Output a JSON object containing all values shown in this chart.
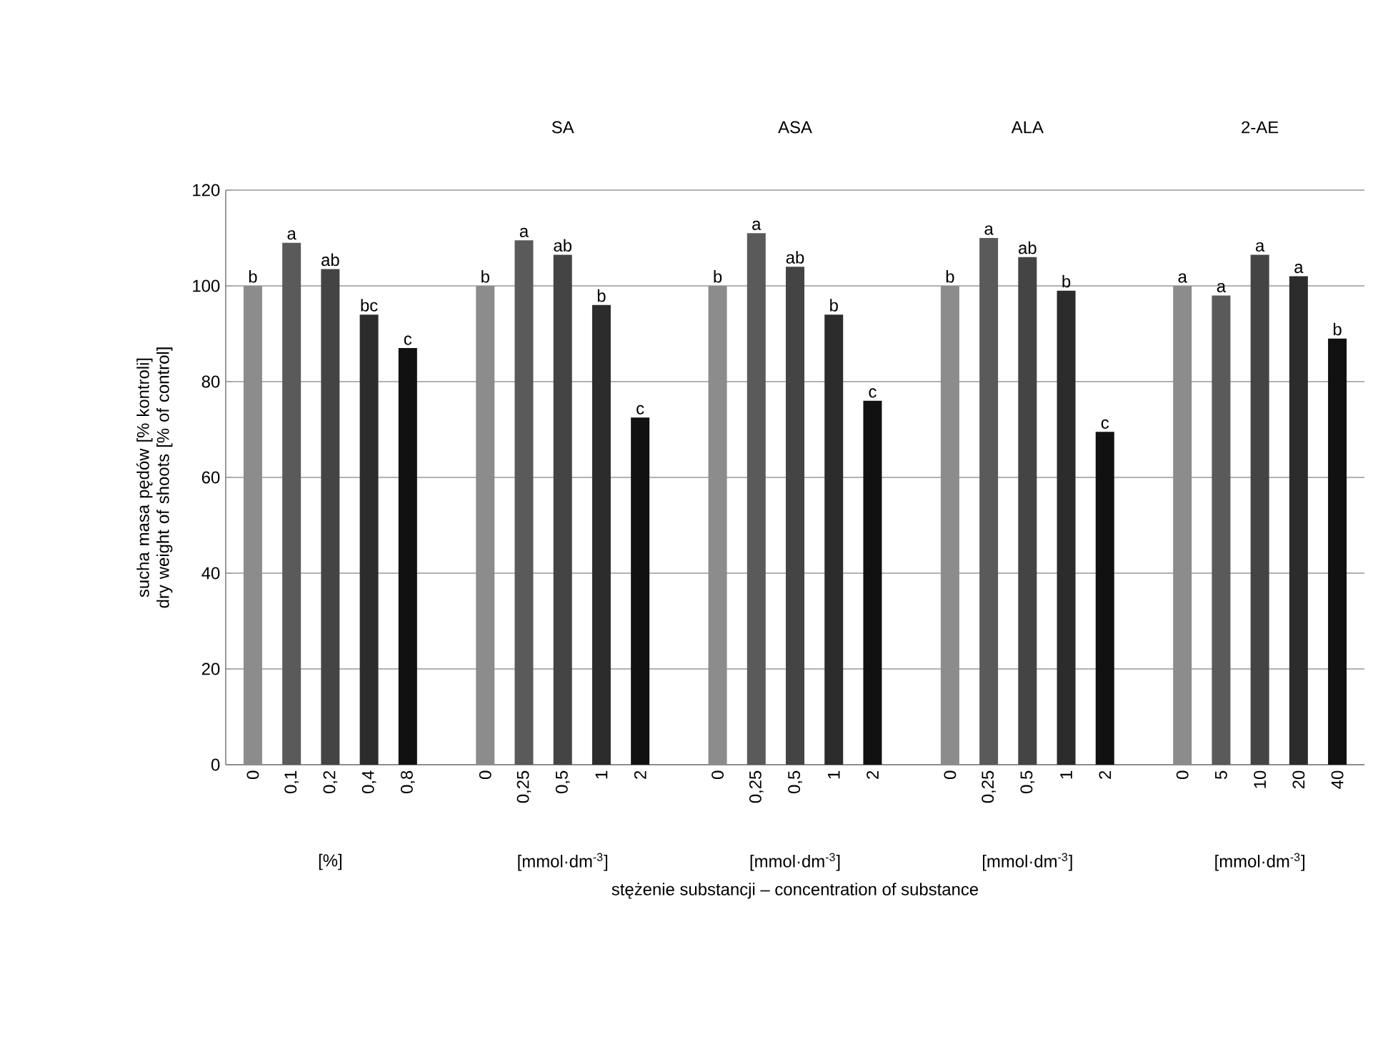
{
  "chart_data": {
    "type": "bar",
    "categories": [
      "0",
      "0,1",
      "0,2",
      "0,4",
      "0,8",
      null,
      "0",
      "0,25",
      "0,5",
      "1",
      "2",
      null,
      "0",
      "0,25",
      "0,5",
      "1",
      "2",
      null,
      "0",
      "0,25",
      "0,5",
      "1",
      "2",
      null,
      "0",
      "5",
      "10",
      "20",
      "40"
    ],
    "values": [
      100,
      109,
      103.5,
      94,
      87,
      null,
      100,
      109.5,
      106.5,
      96,
      72.5,
      null,
      100,
      111,
      104,
      94,
      76,
      null,
      100,
      110,
      106,
      99,
      69.5,
      null,
      100,
      98,
      106.5,
      102,
      89
    ],
    "value_labels": [
      "b",
      "a",
      "ab",
      "bc",
      "c",
      null,
      "b",
      "a",
      "ab",
      "b",
      "c",
      null,
      "b",
      "a",
      "ab",
      "b",
      "c",
      null,
      "b",
      "a",
      "ab",
      "b",
      "c",
      null,
      "a",
      "a",
      "a",
      "a",
      "b"
    ],
    "colors": [
      "#8c8c8c",
      "#5a5a5a",
      "#444444",
      "#2c2c2c",
      "#111111",
      null,
      "#8c8c8c",
      "#5a5a5a",
      "#444444",
      "#2c2c2c",
      "#111111",
      null,
      "#8c8c8c",
      "#5a5a5a",
      "#444444",
      "#2c2c2c",
      "#111111",
      null,
      "#8c8c8c",
      "#5a5a5a",
      "#444444",
      "#2c2c2c",
      "#111111",
      null,
      "#8c8c8c",
      "#5a5a5a",
      "#444444",
      "#2c2c2c",
      "#111111"
    ],
    "ylabel": "sucha masa pędów [% kontroli] dry weight of shoots [% of control]",
    "xlabel": "stężenie substancji – concentration of substance",
    "annotations": [
      "SA",
      "ASA",
      "ALA",
      "2-AE",
      "[%]",
      "[mmol·dm$^{-3}$]",
      "[mmol·dm$^{-3}$]",
      "[mmol·dm$^{-3}$]",
      "[mmol·dm$^{-3}$]"
    ],
    "ylim": [
      0,
      120
    ],
    "yticks": [
      0,
      20,
      40,
      60,
      80,
      100,
      120
    ],
    "grid": "y"
  }
}
